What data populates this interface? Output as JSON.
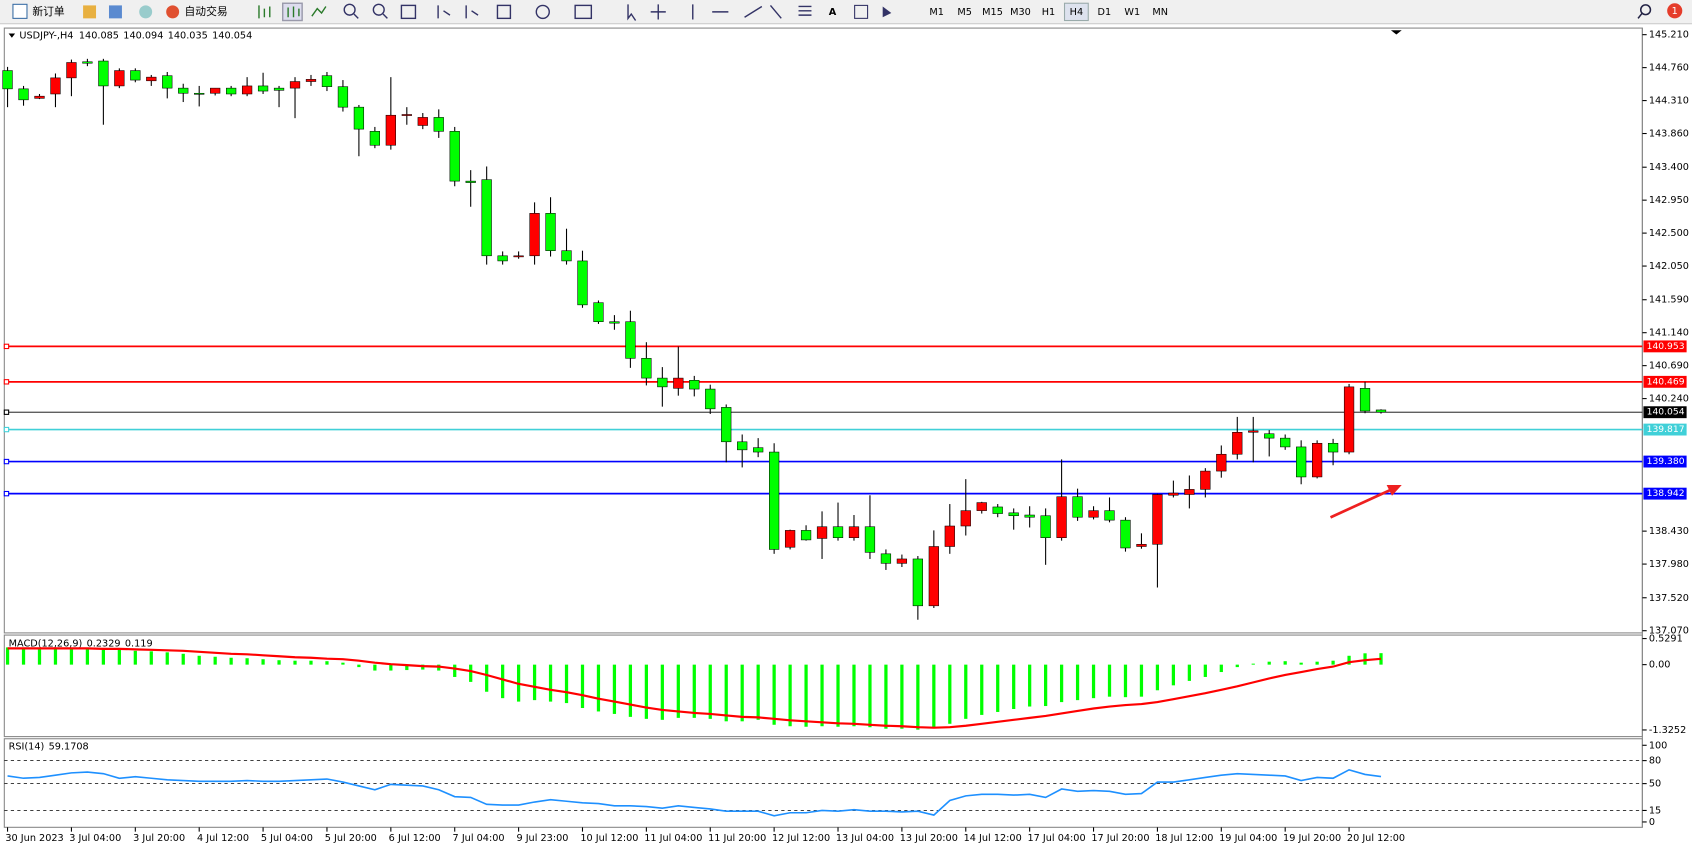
{
  "toolbar": {
    "new_order": "新订单",
    "auto_trading": "自动交易",
    "timeframes": [
      "M1",
      "M5",
      "M15",
      "M30",
      "H1",
      "H4",
      "D1",
      "W1",
      "MN"
    ],
    "active_timeframe": "H4",
    "notifications": 1
  },
  "chart_data": [
    {
      "type": "candlestick",
      "symbol": "USDJPY-,H4",
      "up_color": "#ff0000",
      "down_color": "#00ff00",
      "categories": [
        "30 Jun 2023",
        null,
        null,
        null,
        "3 Jul 04:00",
        null,
        null,
        null,
        "3 Jul 20:00",
        null,
        null,
        null,
        "4 Jul 12:00",
        null,
        null,
        null,
        "5 Jul 04:00",
        null,
        null,
        null,
        "5 Jul 20:00",
        null,
        null,
        null,
        "6 Jul 12:00",
        null,
        null,
        null,
        "7 Jul 04:00",
        null,
        null,
        null,
        "9 Jul 23:00",
        null,
        null,
        null,
        "10 Jul 12:00",
        null,
        null,
        null,
        "11 Jul 04:00",
        null,
        null,
        null,
        "11 Jul 20:00",
        null,
        null,
        null,
        "12 Jul 12:00",
        null,
        null,
        null,
        "13 Jul 04:00",
        null,
        null,
        null,
        "13 Jul 20:00",
        null,
        null,
        null,
        "14 Jul 12:00",
        null,
        null,
        null,
        "17 Jul 04:00",
        null,
        null,
        null,
        "17 Jul 20:00",
        null,
        null,
        null,
        "18 Jul 12:00",
        null,
        null,
        null,
        "19 Jul 04:00",
        null,
        null,
        null,
        "19 Jul 20:00",
        null,
        null,
        null,
        "20 Jul 12:00",
        null,
        null
      ],
      "open": [
        144.72,
        144.47,
        144.34,
        144.4,
        144.62,
        144.84,
        144.85,
        144.51,
        144.72,
        144.58,
        144.65,
        144.48,
        144.41,
        144.41,
        144.48,
        144.4,
        144.51,
        144.48,
        144.48,
        144.57,
        144.65,
        144.5,
        144.22,
        143.89,
        143.7,
        144.11,
        143.97,
        144.08,
        143.89,
        143.21,
        143.23,
        142.19,
        142.18,
        142.19,
        142.77,
        142.26,
        142.12,
        141.55,
        141.29,
        141.29,
        140.79,
        140.52,
        140.38,
        140.49,
        140.37,
        140.12,
        139.65,
        139.57,
        139.51,
        138.21,
        138.44,
        138.33,
        138.49,
        138.34,
        138.49,
        138.12,
        137.99,
        138.05,
        137.41,
        138.22,
        138.5,
        138.71,
        138.76,
        138.68,
        138.65,
        138.64,
        138.34,
        138.9,
        138.62,
        138.71,
        138.58,
        138.22,
        138.25,
        138.92,
        138.93,
        139.0,
        139.25,
        139.48,
        139.78,
        139.76,
        139.7,
        139.58,
        139.17,
        139.63,
        139.51,
        140.38,
        140.085
      ],
      "high": [
        144.77,
        144.51,
        144.4,
        144.68,
        144.87,
        144.88,
        144.88,
        144.75,
        144.75,
        144.66,
        144.7,
        144.54,
        144.51,
        144.48,
        144.51,
        144.63,
        144.69,
        144.51,
        144.63,
        144.66,
        144.7,
        144.59,
        144.25,
        143.95,
        144.63,
        144.22,
        144.14,
        144.19,
        143.95,
        143.36,
        143.41,
        142.25,
        142.25,
        142.92,
        142.99,
        142.56,
        142.26,
        141.58,
        141.38,
        141.44,
        141.01,
        140.67,
        140.95,
        140.55,
        140.43,
        140.16,
        139.75,
        139.7,
        139.63,
        138.45,
        138.51,
        138.7,
        138.82,
        138.65,
        138.92,
        138.18,
        138.11,
        138.09,
        138.44,
        138.8,
        139.14,
        138.83,
        138.8,
        138.74,
        138.77,
        138.74,
        139.41,
        139.01,
        138.77,
        138.89,
        138.62,
        138.4,
        138.94,
        139.12,
        139.19,
        139.29,
        139.6,
        139.99,
        139.99,
        139.81,
        139.75,
        139.67,
        139.67,
        139.69,
        140.44,
        140.47,
        140.094
      ],
      "low": [
        144.22,
        144.24,
        144.33,
        144.22,
        144.37,
        144.78,
        143.98,
        144.48,
        144.56,
        144.51,
        144.34,
        144.29,
        144.23,
        144.38,
        144.37,
        144.37,
        144.4,
        144.22,
        144.07,
        144.51,
        144.44,
        144.16,
        143.55,
        143.66,
        143.64,
        143.98,
        143.92,
        143.8,
        143.14,
        142.86,
        142.07,
        142.07,
        142.15,
        142.07,
        142.18,
        142.07,
        141.48,
        141.26,
        141.18,
        140.66,
        140.42,
        140.13,
        140.28,
        140.27,
        140.03,
        139.37,
        139.3,
        139.44,
        138.12,
        138.18,
        138.3,
        138.05,
        138.3,
        138.3,
        138.05,
        137.9,
        137.94,
        137.22,
        137.38,
        138.12,
        138.37,
        138.67,
        138.62,
        138.45,
        138.48,
        137.97,
        138.3,
        138.57,
        138.59,
        138.55,
        138.15,
        138.19,
        137.66,
        138.89,
        138.74,
        138.89,
        139.16,
        139.41,
        139.37,
        139.45,
        139.54,
        139.07,
        139.15,
        139.33,
        139.48,
        140.04,
        140.035
      ],
      "close": [
        144.47,
        144.32,
        144.37,
        144.62,
        144.83,
        144.82,
        144.51,
        144.72,
        144.59,
        144.63,
        144.48,
        144.41,
        144.4,
        144.48,
        144.4,
        144.51,
        144.44,
        144.45,
        144.57,
        144.6,
        144.5,
        144.22,
        143.92,
        143.7,
        144.11,
        144.12,
        144.08,
        143.89,
        143.21,
        143.19,
        142.19,
        142.12,
        142.19,
        142.77,
        142.26,
        142.12,
        141.52,
        141.29,
        141.27,
        140.79,
        140.52,
        140.4,
        140.52,
        140.37,
        140.1,
        139.65,
        139.54,
        139.51,
        138.18,
        138.44,
        138.31,
        138.49,
        138.34,
        138.49,
        138.14,
        137.99,
        138.05,
        137.41,
        138.22,
        138.5,
        138.71,
        138.82,
        138.67,
        138.64,
        138.62,
        138.34,
        138.9,
        138.62,
        138.71,
        138.58,
        138.2,
        138.25,
        138.93,
        138.95,
        139.0,
        139.25,
        139.48,
        139.78,
        139.8,
        139.7,
        139.58,
        139.17,
        139.63,
        139.51,
        140.4,
        140.07,
        140.054
      ],
      "ylim": [
        137.04,
        145.3
      ],
      "yticks": [
        {
          "value": 145.21,
          "label": "145.210"
        },
        {
          "value": 144.76,
          "label": "144.760"
        },
        {
          "value": 144.31,
          "label": "144.310"
        },
        {
          "value": 143.86,
          "label": "143.860"
        },
        {
          "value": 143.4,
          "label": "143.400"
        },
        {
          "value": 142.95,
          "label": "142.950"
        },
        {
          "value": 142.5,
          "label": "142.500"
        },
        {
          "value": 142.05,
          "label": "142.050"
        },
        {
          "value": 141.59,
          "label": "141.590"
        },
        {
          "value": 141.14,
          "label": "141.140"
        },
        {
          "value": 140.69,
          "label": "140.690"
        },
        {
          "value": 140.24,
          "label": "140.240"
        },
        {
          "value": 138.43,
          "label": "138.430"
        },
        {
          "value": 137.98,
          "label": "137.980"
        },
        {
          "value": 137.52,
          "label": "137.520"
        },
        {
          "value": 137.07,
          "label": "137.070"
        }
      ],
      "levels": [
        {
          "value": 140.953,
          "color": "#ff0000"
        },
        {
          "value": 140.469,
          "color": "#ff0000"
        },
        {
          "value": 140.054,
          "color": "#000000"
        },
        {
          "value": 139.817,
          "color": "#40d0d8"
        },
        {
          "value": 139.38,
          "label": "139.380",
          "color": "#0000ff"
        },
        {
          "value": 138.942,
          "color": "#0000ff"
        }
      ]
    },
    {
      "type": "macd",
      "title": "MACD(12,26,9)",
      "ylim": [
        -1.46,
        0.6
      ],
      "yticks": [
        0.5291,
        {
          "value": 0,
          "label": "0.00"
        },
        -1.3252
      ],
      "series": [
        {
          "type": "bar",
          "color": "#00ff00",
          "values": [
            0.35,
            0.34,
            0.33,
            0.33,
            0.34,
            0.34,
            0.3,
            0.3,
            0.28,
            0.27,
            0.25,
            0.22,
            0.18,
            0.16,
            0.14,
            0.13,
            0.11,
            0.09,
            0.08,
            0.08,
            0.07,
            0.04,
            -0.05,
            -0.12,
            -0.12,
            -0.11,
            -0.1,
            -0.12,
            -0.25,
            -0.35,
            -0.55,
            -0.68,
            -0.75,
            -0.72,
            -0.75,
            -0.78,
            -0.88,
            -0.95,
            -1.0,
            -1.06,
            -1.1,
            -1.12,
            -1.08,
            -1.08,
            -1.1,
            -1.15,
            -1.15,
            -1.12,
            -1.22,
            -1.25,
            -1.26,
            -1.25,
            -1.26,
            -1.25,
            -1.27,
            -1.3,
            -1.3,
            -1.32,
            -1.28,
            -1.2,
            -1.1,
            -1.02,
            -0.96,
            -0.9,
            -0.85,
            -0.84,
            -0.76,
            -0.72,
            -0.68,
            -0.65,
            -0.66,
            -0.65,
            -0.52,
            -0.42,
            -0.33,
            -0.25,
            -0.15,
            -0.05,
            0.02,
            0.06,
            0.07,
            0.04,
            0.06,
            0.08,
            0.18,
            0.23,
            0.2329
          ]
        },
        {
          "type": "line",
          "color": "#ff0000",
          "values": [
            0.33,
            0.33,
            0.33,
            0.33,
            0.33,
            0.33,
            0.32,
            0.32,
            0.31,
            0.3,
            0.29,
            0.28,
            0.26,
            0.24,
            0.22,
            0.21,
            0.19,
            0.17,
            0.15,
            0.14,
            0.12,
            0.11,
            0.08,
            0.04,
            0.01,
            -0.01,
            -0.03,
            -0.04,
            -0.08,
            -0.13,
            -0.21,
            -0.3,
            -0.39,
            -0.45,
            -0.51,
            -0.56,
            -0.62,
            -0.69,
            -0.75,
            -0.81,
            -0.87,
            -0.92,
            -0.95,
            -0.98,
            -1.0,
            -1.03,
            -1.06,
            -1.07,
            -1.1,
            -1.13,
            -1.15,
            -1.17,
            -1.19,
            -1.2,
            -1.22,
            -1.24,
            -1.25,
            -1.27,
            -1.28,
            -1.27,
            -1.24,
            -1.2,
            -1.16,
            -1.12,
            -1.08,
            -1.04,
            -0.99,
            -0.94,
            -0.89,
            -0.85,
            -0.82,
            -0.8,
            -0.76,
            -0.7,
            -0.64,
            -0.58,
            -0.51,
            -0.44,
            -0.36,
            -0.28,
            -0.21,
            -0.15,
            -0.09,
            -0.04,
            0.05,
            0.09,
            0.119
          ]
        }
      ]
    },
    {
      "type": "line",
      "title": "RSI(14)",
      "color": "#1e90ff",
      "ylim": [
        -7,
        108.5
      ],
      "yticks": [
        100,
        80,
        50,
        15,
        0
      ],
      "values": [
        60,
        57,
        58,
        61,
        64,
        65,
        63,
        57,
        59,
        57,
        55,
        54,
        53,
        53,
        53,
        54,
        53,
        53,
        54,
        55,
        56,
        52,
        47,
        42,
        49,
        48,
        47,
        42,
        33,
        32,
        23,
        22,
        22,
        26,
        29,
        27,
        25,
        24,
        21,
        21,
        20,
        18,
        21,
        19,
        17,
        14,
        14,
        14,
        8,
        12,
        12,
        15,
        14,
        16,
        14,
        14,
        13,
        14,
        9,
        28,
        34,
        36,
        36,
        35,
        36,
        32,
        43,
        40,
        41,
        40,
        36,
        37,
        52,
        52,
        55,
        58,
        61,
        63,
        62,
        61,
        60,
        54,
        58,
        57,
        68,
        62,
        59.1708
      ]
    }
  ]
}
